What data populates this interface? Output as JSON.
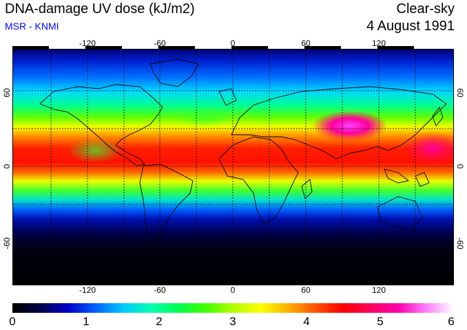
{
  "header": {
    "title": "DNA-damage UV dose (kJ/m2)",
    "subtitle": "MSR - KNMI",
    "condition": "Clear-sky",
    "date": "4 August 1991"
  },
  "map": {
    "lon_ticks": [
      "-120",
      "-60",
      "0",
      "60",
      "120"
    ],
    "lat_ticks": [
      "60",
      "0",
      "-60"
    ],
    "projection": "equirectangular",
    "grid": "dotted"
  },
  "colorbar": {
    "labels": [
      "0",
      "1",
      "2",
      "3",
      "4",
      "5",
      "6"
    ],
    "min": 0,
    "max": 6,
    "colors": [
      "#000000",
      "#00004a",
      "#0000c8",
      "#0060ff",
      "#00c8ff",
      "#00ffb4",
      "#00ff50",
      "#40ff00",
      "#b0ff00",
      "#ffff00",
      "#ffb000",
      "#ff5000",
      "#ff0000",
      "#ff0060",
      "#ff00b0",
      "#ff80ff",
      "#ffffff"
    ]
  }
}
